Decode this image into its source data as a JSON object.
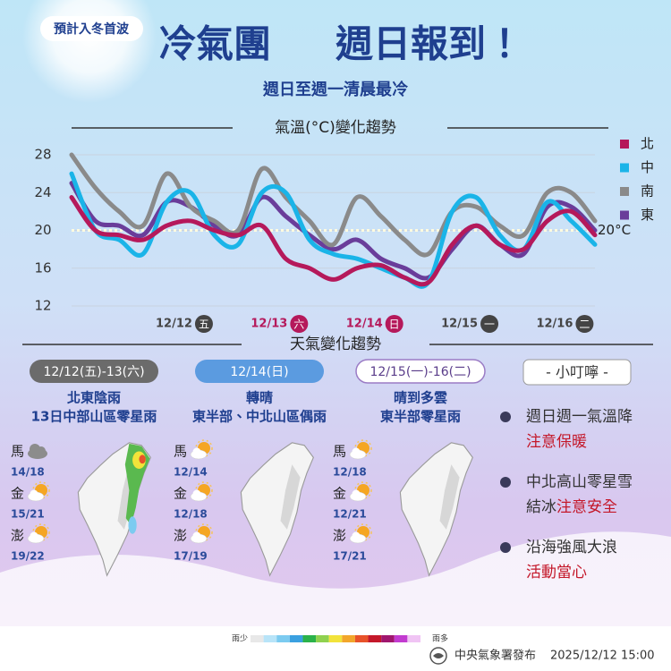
{
  "header": {
    "badge": "預計入冬首波",
    "title": [
      "冷氣團",
      "週日報到！"
    ],
    "subtitle": "週日至週一清晨最冷"
  },
  "chart_data": {
    "type": "line",
    "title": "氣溫(°C)變化趨勢",
    "categories": [
      null,
      null,
      null,
      null,
      null,
      "12/12",
      null,
      null,
      null,
      "12/13",
      null,
      null,
      null,
      "12/14",
      null,
      null,
      null,
      "12/15",
      null,
      null,
      null,
      "12/16",
      null
    ],
    "weekdays": [
      null,
      null,
      null,
      null,
      null,
      "五",
      null,
      null,
      null,
      "六",
      null,
      null,
      null,
      "日",
      null,
      null,
      null,
      "一",
      null,
      null,
      null,
      "二",
      null
    ],
    "label_colors": [
      null,
      null,
      null,
      null,
      null,
      "#444444",
      null,
      null,
      null,
      "#b5195b",
      null,
      null,
      null,
      "#b5195b",
      null,
      null,
      null,
      "#444444",
      null,
      null,
      null,
      "#444444",
      null
    ],
    "series": [
      {
        "name": "北",
        "color": "#b5195b",
        "values": [
          23.5,
          20,
          19.5,
          19,
          20.5,
          21,
          20,
          19.5,
          20.5,
          17,
          16,
          14.8,
          16,
          16.3,
          15,
          14.5,
          18.5,
          20.5,
          18.5,
          18,
          21,
          22,
          19.5
        ]
      },
      {
        "name": "中",
        "color": "#1ab4e8",
        "values": [
          26,
          20,
          19,
          17.5,
          23,
          24,
          19.5,
          18.5,
          24,
          24,
          19,
          17.5,
          17,
          16,
          15,
          14.5,
          22,
          23.5,
          19.5,
          18,
          23,
          21,
          18.5
        ]
      },
      {
        "name": "南",
        "color": "#8a8a8a",
        "values": [
          28,
          24.5,
          22,
          20.5,
          26,
          22.5,
          21,
          20,
          26.5,
          23.5,
          21,
          18.5,
          23.5,
          21.5,
          19,
          17.5,
          22,
          22.5,
          20.5,
          19.5,
          24,
          24,
          21
        ]
      },
      {
        "name": "東",
        "color": "#6a3d9a",
        "values": [
          25,
          21,
          20.5,
          19.5,
          23,
          22.5,
          20.5,
          19.5,
          23.5,
          21.5,
          19.5,
          18,
          19,
          17,
          16,
          15,
          18,
          20.5,
          18.5,
          17.5,
          22.5,
          22.5,
          20
        ]
      }
    ],
    "ylim": [
      12,
      28
    ],
    "yticks": [
      12,
      16,
      20,
      24,
      28
    ],
    "grid": true,
    "reference_line": {
      "value": 20,
      "label": "20°C"
    },
    "legend": "right"
  },
  "forecast": {
    "title": "天氣變化趨勢",
    "columns": [
      {
        "period": "12/12(五)-13(六)",
        "color": "#6b6b6b",
        "text_color": "#ffffff",
        "lines": [
          "北東陰雨",
          "13日中部山區零星雨"
        ],
        "rain": true,
        "islands": [
          {
            "name": "馬",
            "icon": "cloud",
            "temp": "14/18"
          },
          {
            "name": "金",
            "icon": "sun-cloud",
            "temp": "15/21"
          },
          {
            "name": "澎",
            "icon": "sun-cloud",
            "temp": "19/22"
          }
        ]
      },
      {
        "period": "12/14(日)",
        "color": "#5b9be0",
        "text_color": "#ffffff",
        "lines": [
          "轉晴",
          "東半部、中北山區偶雨"
        ],
        "rain": false,
        "islands": [
          {
            "name": "馬",
            "icon": "sun-cloud",
            "temp": "12/14"
          },
          {
            "name": "金",
            "icon": "sun-cloud",
            "temp": "12/18"
          },
          {
            "name": "澎",
            "icon": "sun-cloud",
            "temp": "17/19"
          }
        ]
      },
      {
        "period": "12/15(一)-16(二)",
        "color": "#ffffff",
        "text_color": "#5a3d8a",
        "lines": [
          "晴到多雲",
          "東半部零星雨"
        ],
        "rain": false,
        "islands": [
          {
            "name": "馬",
            "icon": "sun-cloud",
            "temp": "12/18"
          },
          {
            "name": "金",
            "icon": "sun-cloud",
            "temp": "12/21"
          },
          {
            "name": "澎",
            "icon": "sun-cloud",
            "temp": "17/21"
          }
        ]
      }
    ]
  },
  "tips": {
    "title": "- 小叮嚀 -",
    "items": [
      {
        "text": "週日週一氣溫降",
        "note": [
          {
            "text": "注意保暖",
            "alert": true
          }
        ]
      },
      {
        "text": "中北高山零星雪",
        "note": [
          {
            "text": "結冰",
            "alert": false
          },
          {
            "text": "注意安全",
            "alert": true
          }
        ]
      },
      {
        "text": "沿海強風大浪",
        "note": [
          {
            "text": "活動當心",
            "alert": true
          }
        ]
      }
    ]
  },
  "rain_scale": {
    "low": "雨少",
    "high": "雨多",
    "colors": [
      "#e8e8e8",
      "#b8e4f8",
      "#7ccbf0",
      "#3aa0e0",
      "#2bb24a",
      "#8fd14f",
      "#f2e33a",
      "#f2a62b",
      "#e8522a",
      "#c4182a",
      "#a0166e",
      "#c23bd0",
      "#f0c4f4"
    ]
  },
  "footer": {
    "issuer": "中央氣象署發布",
    "time": "2025/12/12 15:00"
  }
}
